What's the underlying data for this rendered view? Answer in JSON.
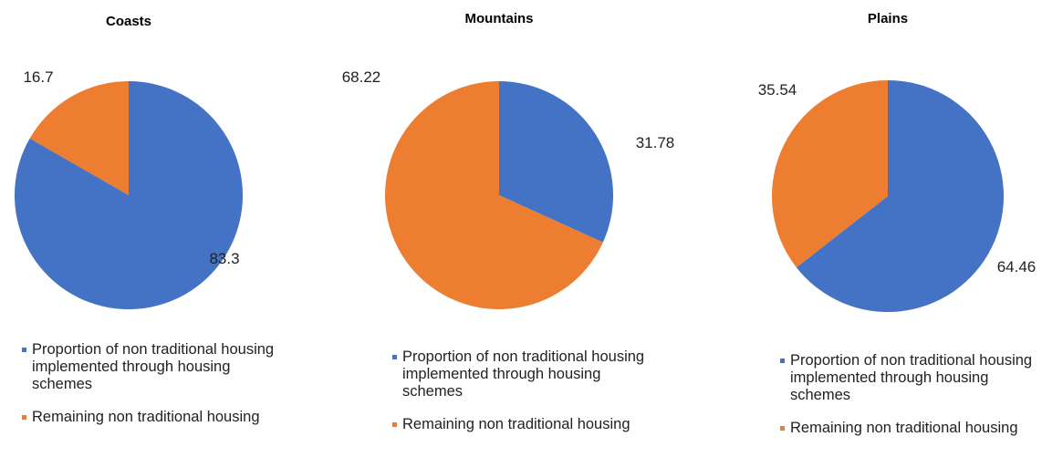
{
  "chart_data": [
    {
      "type": "pie",
      "title": "Coasts",
      "categories": [
        "Proportion of non traditional housing implemented through housing schemes",
        "Remaining non traditional housing"
      ],
      "values": [
        83.3,
        16.7
      ],
      "colors": [
        "#4472c4",
        "#ed7d31"
      ]
    },
    {
      "type": "pie",
      "title": "Mountains",
      "categories": [
        "Proportion of non traditional housing implemented through housing schemes",
        "Remaining non traditional housing"
      ],
      "values": [
        31.78,
        68.22
      ],
      "colors": [
        "#4472c4",
        "#ed7d31"
      ]
    },
    {
      "type": "pie",
      "title": "Plains",
      "categories": [
        "Proportion of non traditional housing implemented through housing schemes",
        "Remaining non traditional housing"
      ],
      "values": [
        64.46,
        35.54
      ],
      "colors": [
        "#4472c4",
        "#ed7d31"
      ]
    }
  ]
}
